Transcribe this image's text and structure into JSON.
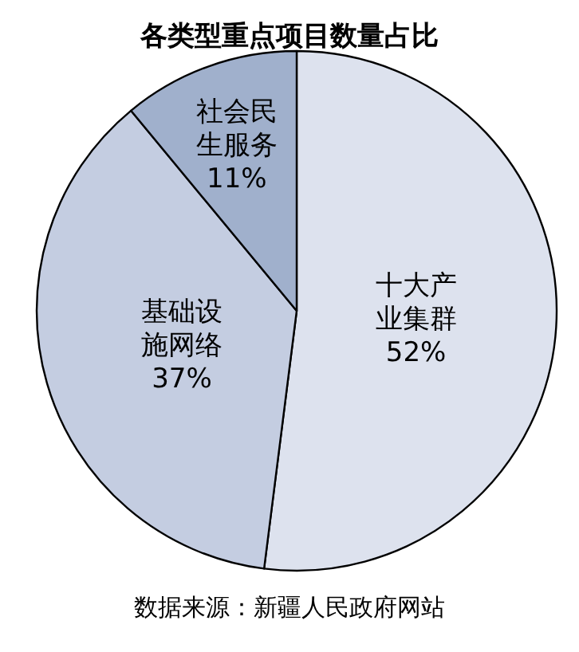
{
  "chart_data": {
    "type": "pie",
    "title": "各类型重点项目数量占比",
    "categories": [
      "十大产业集群",
      "基础设施网络",
      "社会民生服务"
    ],
    "values": [
      52,
      37,
      11
    ],
    "value_labels": [
      "52%",
      "37%",
      "11%"
    ],
    "colors": [
      "#dde2ee",
      "#c4cde1",
      "#a0b0cc"
    ],
    "annotations": [
      "数据来源：新疆人民政府网站"
    ]
  }
}
